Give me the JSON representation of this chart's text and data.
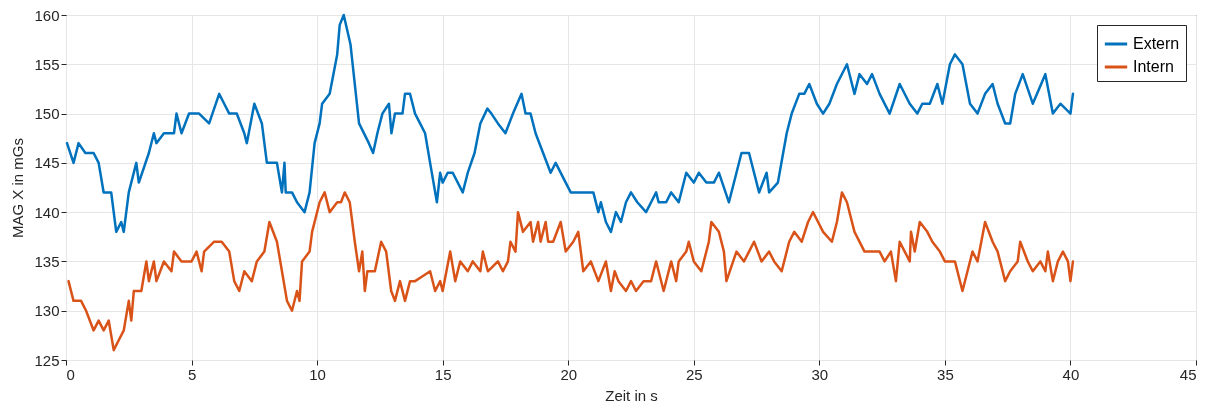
{
  "chart_data": {
    "type": "line",
    "xlabel": "Zeit in s",
    "ylabel": "MAG X in mGs",
    "xlim": [
      0,
      45
    ],
    "xticks": [
      0,
      5,
      10,
      15,
      20,
      25,
      30,
      35,
      40,
      45
    ],
    "ylim": [
      125,
      160
    ],
    "yticks": [
      125,
      130,
      135,
      140,
      145,
      150,
      155,
      160
    ],
    "grid": true,
    "legend": "top right",
    "marker": "none",
    "line_style": "solid",
    "series": [
      {
        "name": "Extern",
        "color": "#0072bd",
        "x": [
          0.04,
          0.3,
          0.5,
          0.77,
          1.1,
          1.3,
          1.5,
          1.8,
          2.0,
          2.2,
          2.3,
          2.5,
          2.8,
          2.9,
          3.3,
          3.5,
          3.6,
          3.9,
          4.3,
          4.4,
          4.6,
          4.9,
          5.3,
          5.7,
          6.1,
          6.3,
          6.5,
          6.8,
          7.1,
          7.2,
          7.5,
          7.8,
          8.0,
          8.4,
          8.6,
          8.7,
          8.75,
          9.0,
          9.2,
          9.5,
          9.7,
          9.9,
          10.1,
          10.2,
          10.5,
          10.8,
          10.9,
          11.06,
          11.33,
          11.67,
          12.06,
          12.23,
          12.4,
          12.6,
          12.86,
          12.96,
          13.1,
          13.4,
          13.5,
          13.7,
          13.9,
          14.1,
          14.3,
          14.5,
          14.77,
          14.9,
          15.0,
          15.2,
          15.4,
          15.8,
          16.0,
          16.27,
          16.5,
          16.78,
          16.94,
          17.2,
          17.5,
          17.8,
          18.14,
          18.3,
          18.5,
          18.7,
          19.0,
          19.3,
          19.5,
          19.9,
          20.1,
          20.5,
          21.0,
          21.2,
          21.3,
          21.5,
          21.7,
          21.9,
          22.1,
          22.3,
          22.5,
          22.75,
          23.1,
          23.3,
          23.5,
          23.6,
          23.9,
          24.1,
          24.4,
          24.7,
          25.0,
          25.2,
          25.5,
          25.8,
          26.0,
          26.4,
          26.7,
          26.9,
          27.2,
          27.6,
          27.9,
          28.0,
          28.35,
          28.7,
          28.9,
          29.2,
          29.4,
          29.6,
          29.9,
          30.15,
          30.4,
          30.7,
          31.1,
          31.4,
          31.6,
          31.9,
          32.1,
          32.4,
          32.8,
          33.2,
          33.6,
          33.9,
          34.1,
          34.4,
          34.7,
          34.9,
          35.2,
          35.4,
          35.7,
          36.0,
          36.3,
          36.6,
          36.9,
          37.1,
          37.4,
          37.6,
          37.8,
          38.1,
          38.5,
          39.0,
          39.3,
          39.6,
          40.0,
          40.1
        ],
        "values": [
          147,
          145,
          147,
          146,
          146,
          145,
          142,
          142,
          138,
          139,
          138,
          142,
          145,
          143,
          146,
          148,
          147,
          148,
          148,
          150,
          148,
          150,
          150,
          149,
          152,
          151,
          150,
          150,
          148,
          147,
          151,
          149,
          145,
          145,
          142,
          145,
          142,
          142,
          141,
          140,
          142,
          147,
          149,
          151,
          152,
          156,
          159,
          160,
          157,
          149,
          147,
          146,
          148,
          150,
          151,
          148,
          150,
          150,
          152,
          152,
          150,
          149,
          148,
          145,
          141,
          144,
          143,
          144,
          144,
          142,
          144,
          146,
          149,
          150.5,
          150,
          149,
          148,
          150,
          152,
          150,
          150,
          148,
          146,
          144,
          145,
          143,
          142,
          142,
          142,
          140,
          141,
          139,
          138,
          140,
          139,
          141,
          142,
          141,
          140,
          141,
          142,
          141,
          141,
          142,
          141,
          144,
          143,
          144,
          143,
          143,
          144,
          141,
          144,
          146,
          146,
          142,
          144,
          142,
          143,
          148,
          150,
          152,
          152,
          153,
          151,
          150,
          151,
          153,
          155,
          152,
          154,
          153,
          154,
          152,
          150,
          153,
          151,
          150,
          151,
          151,
          153,
          151,
          155,
          156,
          155,
          151,
          150,
          152,
          153,
          151,
          149,
          149,
          152,
          154,
          151,
          154,
          150,
          151,
          150,
          152
        ]
      },
      {
        "name": "Intern",
        "color": "#d95319",
        "x": [
          0.1,
          0.3,
          0.6,
          0.8,
          1.1,
          1.3,
          1.5,
          1.7,
          1.9,
          2.1,
          2.3,
          2.5,
          2.6,
          2.7,
          3.0,
          3.2,
          3.3,
          3.5,
          3.6,
          3.9,
          4.2,
          4.3,
          4.6,
          5.0,
          5.2,
          5.4,
          5.5,
          5.9,
          6.2,
          6.5,
          6.7,
          6.9,
          7.1,
          7.4,
          7.6,
          7.9,
          8.1,
          8.4,
          8.6,
          8.8,
          9.0,
          9.2,
          9.3,
          9.4,
          9.7,
          9.8,
          10.1,
          10.3,
          10.5,
          10.8,
          10.95,
          11.1,
          11.3,
          11.5,
          11.67,
          11.8,
          11.9,
          12.0,
          12.1,
          12.3,
          12.55,
          12.75,
          12.95,
          13.1,
          13.3,
          13.5,
          13.7,
          13.9,
          14.2,
          14.5,
          14.7,
          14.9,
          15.0,
          15.3,
          15.5,
          15.7,
          16.0,
          16.2,
          16.5,
          16.6,
          16.8,
          17.2,
          17.4,
          17.6,
          17.7,
          17.9,
          18.0,
          18.2,
          18.5,
          18.6,
          18.8,
          18.9,
          19.1,
          19.2,
          19.4,
          19.7,
          19.9,
          20.2,
          20.4,
          20.6,
          20.9,
          21.2,
          21.5,
          21.7,
          21.85,
          22.0,
          22.3,
          22.5,
          22.7,
          23.0,
          23.3,
          23.5,
          23.6,
          23.8,
          24.1,
          24.3,
          24.4,
          24.7,
          24.8,
          25.0,
          25.3,
          25.6,
          25.7,
          26.0,
          26.2,
          26.3,
          26.7,
          27.0,
          27.2,
          27.4,
          27.7,
          28.0,
          28.2,
          28.5,
          28.8,
          29.0,
          29.3,
          29.55,
          29.75,
          29.95,
          30.15,
          30.5,
          30.7,
          30.9,
          31.1,
          31.4,
          31.8,
          32.1,
          32.4,
          32.6,
          32.85,
          33.05,
          33.2,
          33.4,
          33.6,
          33.65,
          33.8,
          34.0,
          34.3,
          34.5,
          34.8,
          35.0,
          35.4,
          35.7,
          35.9,
          36.1,
          36.3,
          36.6,
          36.9,
          37.1,
          37.4,
          37.6,
          37.9,
          38.0,
          38.3,
          38.5,
          38.8,
          39.0,
          39.1,
          39.3,
          39.5,
          39.7,
          39.9,
          40.0,
          40.1
        ],
        "values": [
          133,
          131,
          131,
          130,
          128,
          129,
          128,
          129,
          126,
          127,
          128,
          131,
          129,
          132,
          132,
          135,
          133,
          135,
          133,
          135,
          134,
          136,
          135,
          135,
          136,
          134,
          136,
          137,
          137,
          136,
          133,
          132,
          134,
          133,
          135,
          136,
          139,
          137,
          134,
          131,
          130,
          132,
          131,
          135,
          136,
          138,
          141,
          142,
          140,
          141,
          141,
          142,
          141,
          137,
          134,
          136,
          132,
          134,
          134,
          134,
          137,
          136,
          132,
          131,
          133,
          131,
          133,
          133,
          133.5,
          134,
          132,
          133,
          132,
          136,
          133,
          135,
          134,
          135,
          134,
          136,
          134,
          135,
          134,
          135,
          137,
          136,
          140,
          138,
          139,
          137,
          139,
          137,
          139,
          137,
          137,
          139,
          136,
          137,
          138,
          134,
          135,
          133,
          135,
          132,
          134,
          133,
          132,
          133,
          132,
          133,
          133,
          135,
          134,
          132,
          135,
          133,
          135,
          136,
          137,
          135,
          134,
          137,
          139,
          138,
          136,
          133,
          136,
          135,
          136,
          137,
          135,
          136,
          135,
          134,
          137,
          138,
          137,
          139,
          140,
          139,
          138,
          137,
          139,
          142,
          141,
          138,
          136,
          136,
          136,
          135,
          136,
          133,
          137,
          136,
          135,
          138,
          136,
          139,
          138,
          137,
          136,
          135,
          135,
          132,
          134,
          136,
          135,
          139,
          137,
          136,
          133,
          134,
          135,
          137,
          135,
          134,
          135,
          134,
          136,
          133,
          135,
          136,
          135,
          133,
          135
        ]
      }
    ]
  }
}
